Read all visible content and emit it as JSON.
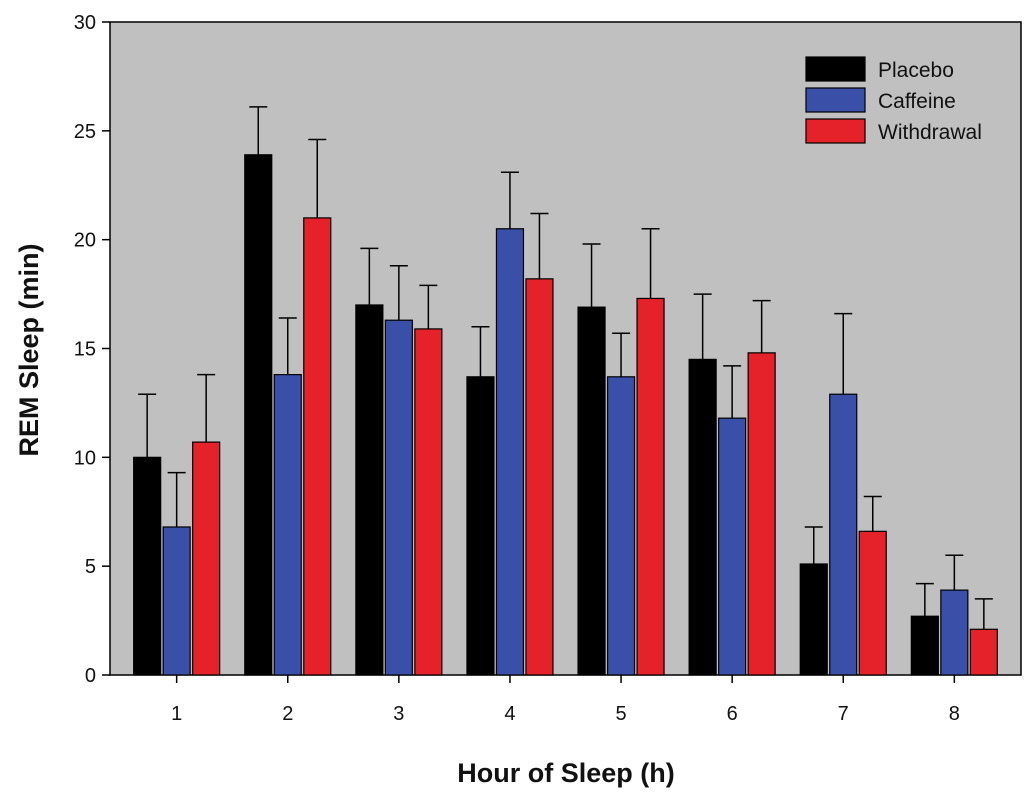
{
  "chart_data": {
    "type": "bar",
    "title": "",
    "xlabel": "Hour of Sleep (h)",
    "ylabel": "REM Sleep (min)",
    "ylim": [
      0,
      30
    ],
    "yticks": [
      0,
      5,
      10,
      15,
      20,
      25,
      30
    ],
    "categories": [
      "1",
      "2",
      "3",
      "4",
      "5",
      "6",
      "7",
      "8"
    ],
    "series": [
      {
        "name": "Placebo",
        "color": "#000000",
        "values": [
          10.0,
          23.9,
          17.0,
          13.7,
          16.9,
          14.5,
          5.1,
          2.7
        ],
        "errors": [
          2.9,
          2.2,
          2.6,
          2.3,
          2.9,
          3.0,
          1.7,
          1.5
        ]
      },
      {
        "name": "Caffeine",
        "color": "#3a4fa8",
        "values": [
          6.8,
          13.8,
          16.3,
          20.5,
          13.7,
          11.8,
          12.9,
          3.9
        ],
        "errors": [
          2.5,
          2.6,
          2.5,
          2.6,
          2.0,
          2.4,
          3.7,
          1.6
        ]
      },
      {
        "name": "Withdrawal",
        "color": "#e52129",
        "values": [
          10.7,
          21.0,
          15.9,
          18.2,
          17.3,
          14.8,
          6.6,
          2.1
        ],
        "errors": [
          3.1,
          3.6,
          2.0,
          3.0,
          3.2,
          2.4,
          1.6,
          1.4
        ]
      }
    ],
    "legend_position": "top-right",
    "plot_background": "#c0c0c0",
    "error_bars": "upper"
  }
}
